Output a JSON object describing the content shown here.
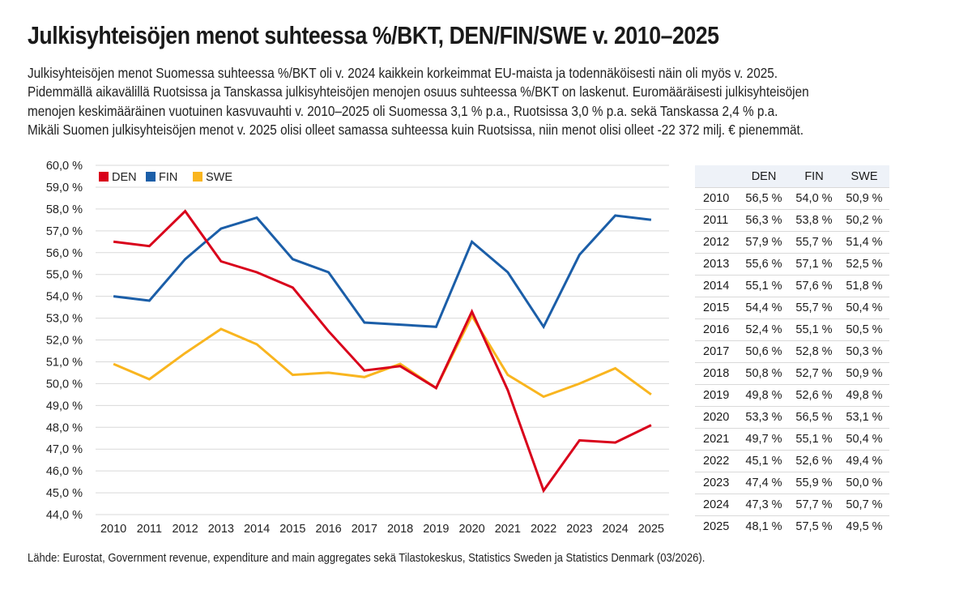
{
  "header": {
    "title": "Julkisyhteisöjen menot suhteessa %/BKT, DEN/FIN/SWE v. 2010–2025",
    "description_lines": [
      "Julkisyhteisöjen menot Suomessa suhteessa %/BKT oli v. 2024 kaikkein korkeimmat EU-maista ja todennäköisesti näin oli myös v. 2025.",
      "Pidemmällä aikavälillä Ruotsissa ja Tanskassa julkisyhteisöjen menojen osuus suhteessa %/BKT on laskenut. Euromääräisesti julkisyhteisöjen",
      "menojen keskimääräinen vuotuinen kasvuvauhti v. 2010–2025 oli Suomessa 3,1 % p.a., Ruotsissa 3,0 % p.a. sekä Tanskassa 2,4 % p.a.",
      "Mikäli Suomen julkisyhteisöjen menot v. 2025 olisi olleet samassa suhteessa kuin Ruotsissa, niin menot olisi olleet -22 372 milj. € pienemmät."
    ]
  },
  "chart_data": {
    "type": "line",
    "x": [
      "2010",
      "2011",
      "2012",
      "2013",
      "2014",
      "2015",
      "2016",
      "2017",
      "2018",
      "2019",
      "2020",
      "2021",
      "2022",
      "2023",
      "2024",
      "2025"
    ],
    "series": [
      {
        "name": "DEN",
        "color": "#d9001b",
        "values": [
          56.5,
          56.3,
          57.9,
          55.6,
          55.1,
          54.4,
          52.4,
          50.6,
          50.8,
          49.8,
          53.3,
          49.7,
          45.1,
          47.4,
          47.3,
          48.1
        ]
      },
      {
        "name": "FIN",
        "color": "#1b5ea8",
        "values": [
          54.0,
          53.8,
          55.7,
          57.1,
          57.6,
          55.7,
          55.1,
          52.8,
          52.7,
          52.6,
          56.5,
          55.1,
          52.6,
          55.9,
          57.7,
          57.5
        ]
      },
      {
        "name": "SWE",
        "color": "#f9b51f",
        "values": [
          50.9,
          50.2,
          51.4,
          52.5,
          51.8,
          50.4,
          50.5,
          50.3,
          50.9,
          49.8,
          53.1,
          50.4,
          49.4,
          50.0,
          50.7,
          49.5
        ]
      }
    ],
    "ylim": [
      44,
      60
    ],
    "y_ticks": [
      "44,0 %",
      "45,0 %",
      "46,0 %",
      "47,0 %",
      "48,0 %",
      "49,0 %",
      "50,0 %",
      "51,0 %",
      "52,0 %",
      "53,0 %",
      "54,0 %",
      "55,0 %",
      "56,0 %",
      "57,0 %",
      "58,0 %",
      "59,0 %",
      "60,0 %"
    ],
    "grid": true,
    "legend": "top-left",
    "xlabel": "",
    "ylabel": ""
  },
  "table": {
    "headers": [
      "",
      "DEN",
      "FIN",
      "SWE"
    ],
    "rows": [
      [
        "2010",
        "56,5 %",
        "54,0 %",
        "50,9 %"
      ],
      [
        "2011",
        "56,3 %",
        "53,8 %",
        "50,2 %"
      ],
      [
        "2012",
        "57,9 %",
        "55,7 %",
        "51,4 %"
      ],
      [
        "2013",
        "55,6 %",
        "57,1 %",
        "52,5 %"
      ],
      [
        "2014",
        "55,1 %",
        "57,6 %",
        "51,8 %"
      ],
      [
        "2015",
        "54,4 %",
        "55,7 %",
        "50,4 %"
      ],
      [
        "2016",
        "52,4 %",
        "55,1 %",
        "50,5 %"
      ],
      [
        "2017",
        "50,6 %",
        "52,8 %",
        "50,3 %"
      ],
      [
        "2018",
        "50,8 %",
        "52,7 %",
        "50,9 %"
      ],
      [
        "2019",
        "49,8 %",
        "52,6 %",
        "49,8 %"
      ],
      [
        "2020",
        "53,3 %",
        "56,5 %",
        "53,1 %"
      ],
      [
        "2021",
        "49,7 %",
        "55,1 %",
        "50,4 %"
      ],
      [
        "2022",
        "45,1 %",
        "52,6 %",
        "49,4 %"
      ],
      [
        "2023",
        "47,4 %",
        "55,9 %",
        "50,0 %"
      ],
      [
        "2024",
        "47,3 %",
        "57,7 %",
        "50,7 %"
      ],
      [
        "2025",
        "48,1 %",
        "57,5 %",
        "49,5 %"
      ]
    ]
  },
  "footer": {
    "source": "Lähde: Eurostat, Government revenue, expenditure and main aggregates sekä Tilastokeskus, Statistics Sweden ja Statistics Denmark (03/2026)."
  }
}
